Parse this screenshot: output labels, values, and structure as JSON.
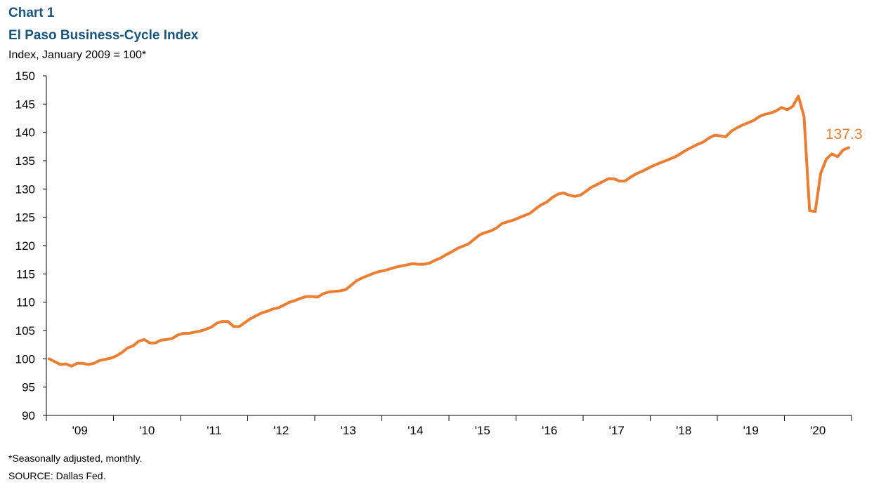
{
  "header": {
    "chart_number": "Chart 1",
    "title": "El Paso Business-Cycle Index",
    "units": "Index, January 2009 = 100*"
  },
  "footer": {
    "note": "*Seasonally adjusted, monthly.",
    "source": "SOURCE:  Dallas Fed."
  },
  "colors": {
    "line": "#ed7d31",
    "title": "#17567e",
    "axis": "#000000"
  },
  "chart_data": {
    "type": "line",
    "title": "El Paso Business-Cycle Index",
    "ylabel": "Index, January 2009 = 100*",
    "xlabel": "",
    "ylim": [
      90,
      150
    ],
    "yticks": [
      90,
      95,
      100,
      105,
      110,
      115,
      120,
      125,
      130,
      135,
      140,
      145,
      150
    ],
    "grid": false,
    "x_period_labels": [
      "'09",
      "'10",
      "'11",
      "'12",
      "'13",
      "'14",
      "'15",
      "'16",
      "'17",
      "'18",
      "'19",
      "'20"
    ],
    "end_label": "137.3",
    "series": [
      {
        "values": [
          100.0,
          99.5,
          99.0,
          99.1,
          98.7,
          99.2,
          99.2,
          99.0,
          99.2,
          99.7,
          99.9,
          100.1,
          100.5,
          101.1,
          101.9,
          102.3,
          103.1,
          103.4,
          102.8,
          102.8,
          103.3,
          103.4,
          103.6,
          104.2,
          104.5,
          104.5,
          104.7,
          104.9,
          105.2,
          105.6,
          106.3,
          106.6,
          106.6,
          105.7,
          105.7,
          106.4,
          107.1,
          107.6,
          108.1,
          108.4,
          108.8,
          109.0,
          109.5,
          110.0,
          110.3,
          110.7,
          111.0,
          111.0,
          110.9,
          111.5,
          111.8,
          111.9,
          112.0,
          112.2,
          113.0,
          113.8,
          114.3,
          114.7,
          115.1,
          115.4,
          115.6,
          115.9,
          116.2,
          116.4,
          116.6,
          116.8,
          116.7,
          116.7,
          116.9,
          117.4,
          117.8,
          118.4,
          118.9,
          119.5,
          119.9,
          120.3,
          121.1,
          121.9,
          122.3,
          122.6,
          123.1,
          123.9,
          124.2,
          124.5,
          124.9,
          125.3,
          125.7,
          126.5,
          127.2,
          127.7,
          128.5,
          129.1,
          129.3,
          128.9,
          128.7,
          128.9,
          129.6,
          130.3,
          130.8,
          131.3,
          131.8,
          131.8,
          131.4,
          131.4,
          132.1,
          132.7,
          133.1,
          133.6,
          134.1,
          134.5,
          134.9,
          135.3,
          135.7,
          136.3,
          136.9,
          137.4,
          137.9,
          138.3,
          139.0,
          139.5,
          139.4,
          139.2,
          140.2,
          140.8,
          141.3,
          141.7,
          142.1,
          142.8,
          143.2,
          143.4,
          143.8,
          144.4,
          144.0,
          144.6,
          146.4,
          142.8,
          126.2,
          126.0,
          132.8,
          135.3,
          136.2,
          135.7,
          136.9,
          137.3
        ]
      }
    ]
  }
}
